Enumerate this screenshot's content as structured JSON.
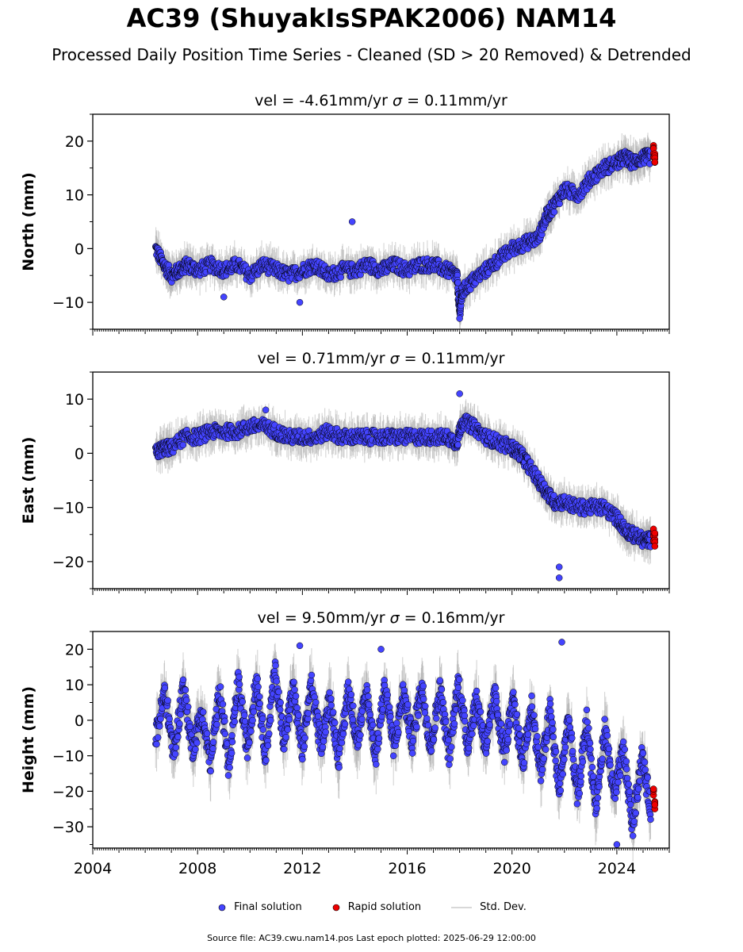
{
  "title": "AC39 (ShuyakIsSPAK2006) NAM14",
  "subtitle": "Processed Daily Position Time Series - Cleaned (SD > 20 Removed) & Detrended",
  "source": "Source file: AC39.cwu.nam14.pos  Last epoch plotted: 2025-06-29 12:00:00",
  "legend": {
    "final": "Final solution",
    "rapid": "Rapid solution",
    "std": "Std. Dev."
  },
  "colors": {
    "final": "#4444ff",
    "rapid": "#ee0000",
    "std": "#aaaaaa",
    "edge": "#000000"
  },
  "chart_data": [
    {
      "type": "scatter",
      "panel": "north",
      "title_pre": "vel = -4.61mm/yr   ",
      "title_sigma": "σ",
      "title_post": " = 0.11mm/yr",
      "ylabel": "North (mm)",
      "xlim": [
        2004,
        2026
      ],
      "ylim": [
        -15,
        25
      ],
      "yticks": [
        20,
        10,
        0,
        -10
      ],
      "ytick_labels": [
        "20",
        "10",
        "0",
        "−10"
      ],
      "show_xlabels": false,
      "series": [
        {
          "x": [
            2006.4,
            2006.7,
            2007.0,
            2007.3,
            2007.6,
            2008.0,
            2008.5,
            2009.0,
            2009.5,
            2010.0,
            2010.5,
            2011.0,
            2011.5,
            2012.0,
            2012.5,
            2013.0,
            2013.5,
            2014.0,
            2014.5,
            2015.0,
            2015.5,
            2016.0,
            2016.5,
            2017.0,
            2017.5,
            2017.9,
            2018.0,
            2018.1,
            2018.5,
            2019.0,
            2019.5,
            2020.0,
            2020.5,
            2021.0,
            2021.3,
            2021.6,
            2022.0,
            2022.5,
            2023.0,
            2023.5,
            2024.0,
            2024.3,
            2024.6,
            2025.0,
            2025.3
          ],
          "y": [
            0,
            -3,
            -5,
            -4,
            -3,
            -4,
            -3,
            -4,
            -3,
            -5,
            -3,
            -4,
            -5,
            -4,
            -3,
            -5,
            -4,
            -4,
            -3,
            -4,
            -3,
            -4,
            -3,
            -3,
            -4,
            -5,
            -12,
            -8,
            -6,
            -4,
            -2,
            0,
            1,
            2,
            6,
            8,
            11,
            10,
            13,
            15,
            16,
            17,
            16,
            17,
            17
          ]
        }
      ],
      "rapid": {
        "x": [
          2025.4,
          2025.45
        ],
        "y": [
          18,
          17
        ]
      },
      "outliers": {
        "x": [
          2013.9,
          2009.0,
          2011.9,
          2018.0
        ],
        "y": [
          5,
          -9,
          -10,
          -13
        ]
      }
    },
    {
      "type": "scatter",
      "panel": "east",
      "title_pre": "vel = 0.71mm/yr   ",
      "title_sigma": "σ",
      "title_post": " = 0.11mm/yr",
      "ylabel": "East (mm)",
      "xlim": [
        2004,
        2026
      ],
      "ylim": [
        -25,
        15
      ],
      "yticks": [
        10,
        0,
        -10,
        -20
      ],
      "ytick_labels": [
        "10",
        "0",
        "−10",
        "−20"
      ],
      "show_xlabels": false,
      "series": [
        {
          "x": [
            2006.4,
            2006.7,
            2007.0,
            2007.5,
            2008.0,
            2008.5,
            2009.0,
            2009.5,
            2010.0,
            2010.5,
            2011.0,
            2011.5,
            2012.0,
            2012.5,
            2013.0,
            2013.5,
            2014.0,
            2014.5,
            2015.0,
            2015.5,
            2016.0,
            2016.5,
            2017.0,
            2017.5,
            2017.9,
            2018.1,
            2018.5,
            2019.0,
            2019.5,
            2020.0,
            2020.3,
            2020.6,
            2021.0,
            2021.3,
            2021.6,
            2022.0,
            2022.5,
            2023.0,
            2023.5,
            2024.0,
            2024.3,
            2024.6,
            2025.0,
            2025.3
          ],
          "y": [
            0,
            1,
            1,
            3,
            3,
            4,
            4,
            4,
            5,
            5,
            4,
            3,
            3,
            3,
            4,
            3,
            3,
            3,
            3,
            3,
            3,
            3,
            3,
            3,
            2,
            6,
            5,
            3,
            2,
            1,
            0,
            -2,
            -5,
            -7,
            -9,
            -9,
            -10,
            -10,
            -10,
            -12,
            -14,
            -15,
            -16,
            -16
          ]
        }
      ],
      "rapid": {
        "x": [
          2025.4,
          2025.45
        ],
        "y": [
          -15,
          -16
        ]
      },
      "outliers": {
        "x": [
          2018.0,
          2021.8,
          2021.8,
          2010.6
        ],
        "y": [
          11,
          -21,
          -23,
          8
        ]
      }
    },
    {
      "type": "scatter",
      "panel": "height",
      "title_pre": "vel = 9.50mm/yr   ",
      "title_sigma": "σ",
      "title_post": " = 0.16mm/yr",
      "ylabel": "Height (mm)",
      "xlim": [
        2004,
        2026
      ],
      "ylim": [
        -36,
        25
      ],
      "yticks": [
        20,
        10,
        0,
        -10,
        -20,
        -30
      ],
      "ytick_labels": [
        "20",
        "10",
        "0",
        "−10",
        "−20",
        "−30"
      ],
      "xticks": [
        2004,
        2008,
        2012,
        2016,
        2020,
        2024
      ],
      "xtick_labels": [
        "2004",
        "2008",
        "2012",
        "2016",
        "2020",
        "2024"
      ],
      "show_xlabels": true,
      "series": [
        {
          "x": [
            2006.4,
            2006.75,
            2007.1,
            2007.45,
            2007.8,
            2008.15,
            2008.5,
            2008.85,
            2009.2,
            2009.55,
            2009.9,
            2010.25,
            2010.6,
            2010.95,
            2011.3,
            2011.65,
            2012.0,
            2012.35,
            2012.7,
            2013.05,
            2013.4,
            2013.75,
            2014.1,
            2014.45,
            2014.8,
            2015.15,
            2015.5,
            2015.85,
            2016.2,
            2016.55,
            2016.9,
            2017.25,
            2017.6,
            2017.95,
            2018.3,
            2018.65,
            2019.0,
            2019.35,
            2019.7,
            2020.05,
            2020.4,
            2020.75,
            2021.1,
            2021.45,
            2021.8,
            2022.15,
            2022.5,
            2022.85,
            2023.2,
            2023.55,
            2023.9,
            2024.25,
            2024.6,
            2024.95,
            2025.3
          ],
          "y": [
            -5,
            8,
            -10,
            10,
            -8,
            2,
            -12,
            9,
            -14,
            11,
            -8,
            12,
            -10,
            14,
            -6,
            9,
            -9,
            10,
            -7,
            6,
            -11,
            9,
            -6,
            8,
            -10,
            10,
            -8,
            8,
            -6,
            10,
            -8,
            9,
            -10,
            11,
            -7,
            6,
            -8,
            7,
            -9,
            5,
            -12,
            4,
            -15,
            3,
            -20,
            1,
            -22,
            0,
            -25,
            -2,
            -22,
            -8,
            -30,
            -10,
            -25
          ]
        }
      ],
      "rapid": {
        "x": [
          2025.4,
          2025.45
        ],
        "y": [
          -20,
          -24
        ]
      },
      "outliers": {
        "x": [
          2021.9,
          2015.0,
          2011.9,
          2024.0
        ],
        "y": [
          22,
          20,
          21,
          -35
        ]
      }
    }
  ]
}
